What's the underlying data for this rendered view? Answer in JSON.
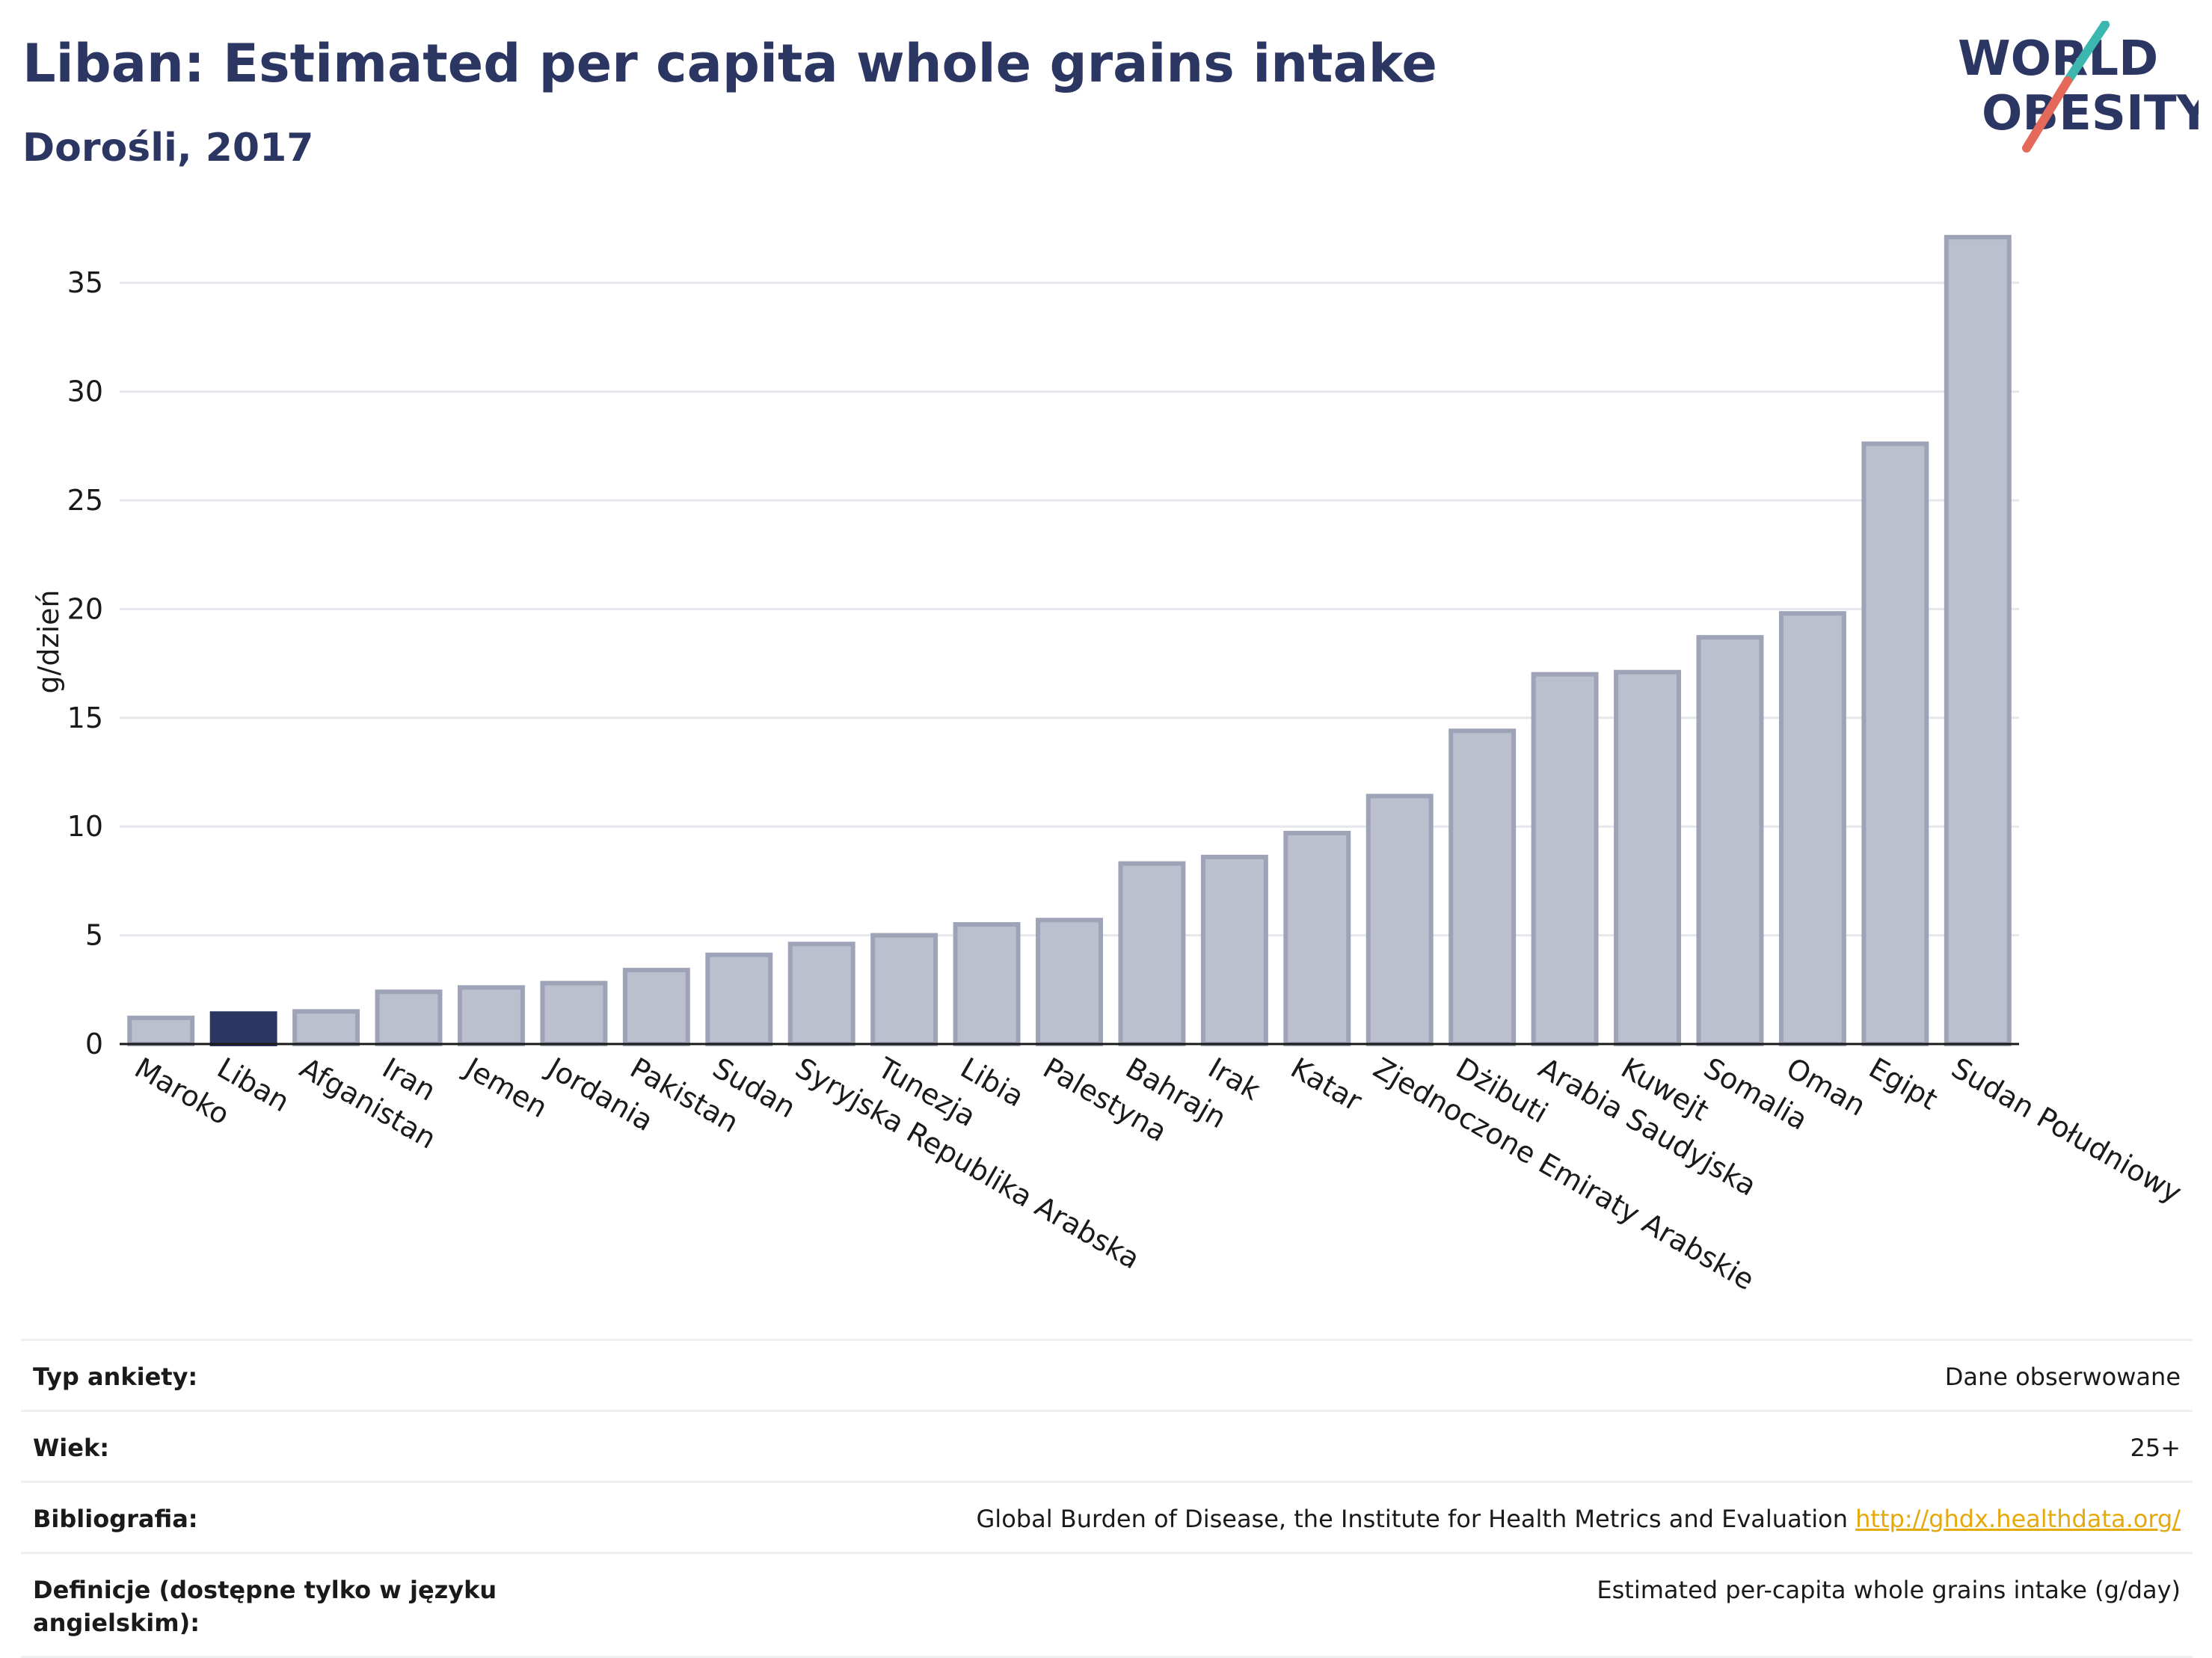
{
  "header": {
    "title": "Liban: Estimated per capita whole grains intake",
    "subtitle": "Dorośli, 2017"
  },
  "logo": {
    "line1": "WORLD",
    "line2": "OBESITY",
    "accent_colors": [
      "#e5695a",
      "#3cb7b0"
    ]
  },
  "colors": {
    "bar_default": "#bcbfcd",
    "bar_stroke": "#9ea3b8",
    "bar_highlight": "#2b3663",
    "text_primary": "#2b3663",
    "grid": "#e6e7ec"
  },
  "chart_data": {
    "type": "bar",
    "ylabel": "g/dzień",
    "ylim": [
      0,
      37
    ],
    "yticks": [
      0,
      5,
      10,
      15,
      20,
      25,
      30,
      35
    ],
    "categories": [
      "Maroko",
      "Liban",
      "Afganistan",
      "Iran",
      "Jemen",
      "Jordania",
      "Pakistan",
      "Sudan",
      "Syryjska Republika Arabska",
      "Tunezja",
      "Libia",
      "Palestyna",
      "Bahrajn",
      "Irak",
      "Katar",
      "Zjednoczone Emiraty Arabskie",
      "Dżibuti",
      "Arabia Saudyjska",
      "Kuwejt",
      "Somalia",
      "Oman",
      "Egipt",
      "Sudan Południowy"
    ],
    "values": [
      1.2,
      1.4,
      1.5,
      2.4,
      2.6,
      2.8,
      3.4,
      4.1,
      4.6,
      5.0,
      5.5,
      5.7,
      8.3,
      8.6,
      9.7,
      11.4,
      14.4,
      17.0,
      17.1,
      18.7,
      19.8,
      27.6,
      37.1
    ],
    "highlight": "Liban",
    "grid": true
  },
  "info": {
    "rows": [
      {
        "label": "Typ ankiety:",
        "value": "Dane obserwowane"
      },
      {
        "label": "Wiek:",
        "value": "25+"
      },
      {
        "label": "Bibliografia:",
        "value": "Global Burden of Disease, the Institute for Health Metrics and Evaluation",
        "link": "http://ghdx.healthdata.org/"
      },
      {
        "label": "Definicje (dostępne tylko w języku angielskim):",
        "value": "Estimated per-capita whole grains intake (g/day)"
      }
    ]
  }
}
